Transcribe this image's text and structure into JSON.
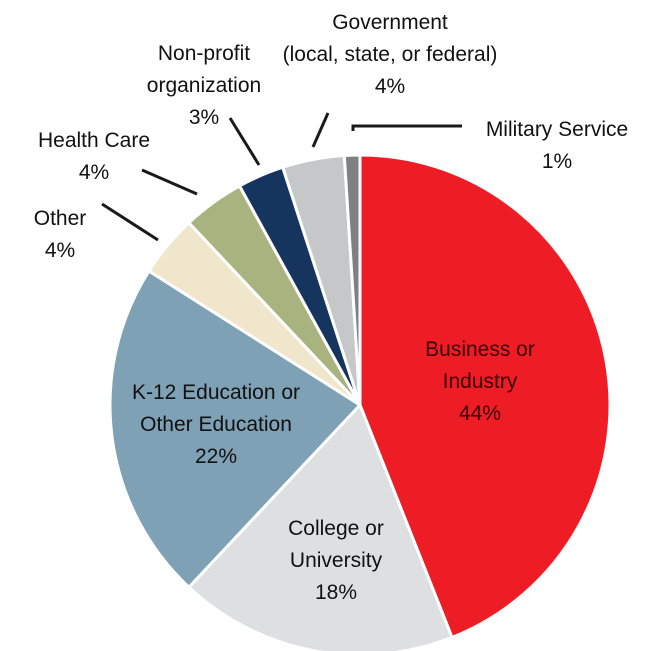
{
  "chart_data": {
    "type": "pie",
    "start": "12 o'clock",
    "direction": "clockwise",
    "slices": [
      {
        "name": "Business or Industry",
        "value": 44,
        "label_lines": [
          "Business or",
          "Industry",
          "44%"
        ],
        "color": "#ee1c25",
        "label_color": "#3a0000"
      },
      {
        "name": "College or University",
        "value": 18,
        "label_lines": [
          "College or",
          "University",
          "18%"
        ],
        "color": "#dedfe1",
        "label_color": "#111111"
      },
      {
        "name": "K-12 Education or Other Education",
        "value": 22,
        "label_lines": [
          "K-12 Education or",
          "Other Education",
          "22%"
        ],
        "color": "#7fa1b5",
        "label_color": "#111111"
      },
      {
        "name": "Other",
        "value": 4,
        "label_lines": [
          "Other",
          "4%"
        ],
        "color": "#efe6cc",
        "label_color": "#111111"
      },
      {
        "name": "Health Care",
        "value": 4,
        "label_lines": [
          "Health Care",
          "4%"
        ],
        "color": "#a9b380",
        "label_color": "#111111"
      },
      {
        "name": "Non-profit organization",
        "value": 3,
        "label_lines": [
          "Non-profit",
          "organization",
          "3%"
        ],
        "color": "#15355f",
        "label_color": "#111111"
      },
      {
        "name": "Government (local, state, or federal)",
        "value": 4,
        "label_lines": [
          "Government",
          "(local, state, or federal)",
          "4%"
        ],
        "color": "#c6c7c9",
        "label_color": "#111111"
      },
      {
        "name": "Military Service",
        "value": 1,
        "label_lines": [
          "Military Service",
          "1%"
        ],
        "color": "#808080",
        "label_color": "#111111"
      }
    ]
  }
}
